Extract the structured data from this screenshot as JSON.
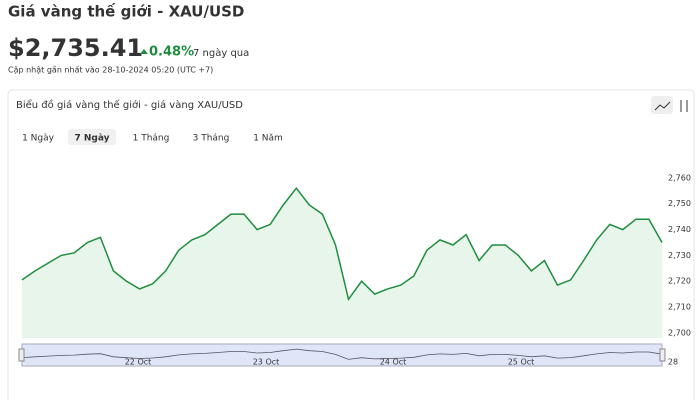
{
  "header": {
    "title": "Giá vàng thế giới - XAU/USD",
    "price": "$2,735.41",
    "change": "0.48%",
    "period": "7 ngày qua",
    "updated": "Cập nhật gần nhất vào 28-10-2024 05:20 (UTC +7)"
  },
  "panel": {
    "title": "Biểu đồ giá vàng thế giới - giá vàng XAU/USD",
    "tabs": [
      "1 Ngày",
      "7 Ngày",
      "1 Tháng",
      "3 Tháng",
      "1 Năm"
    ],
    "selected_tab": 1
  },
  "chart_data": {
    "type": "line",
    "color": "#1e8e3e",
    "values": [
      2720.5,
      2724,
      2727,
      2730,
      2731,
      2735,
      2737,
      2724,
      2720,
      2717,
      2719,
      2724,
      2732,
      2736,
      2738,
      2742,
      2746,
      2746,
      2740,
      2742,
      2749.5,
      2756,
      2749.5,
      2746,
      2734,
      2713,
      2720,
      2715,
      2717,
      2718.5,
      2722,
      2732,
      2736,
      2734,
      2738,
      2728,
      2734,
      2734,
      2730,
      2724,
      2728,
      2718.5,
      2720.5,
      2728,
      2736,
      2742,
      2740,
      2744,
      2744,
      2735
    ],
    "ylim": [
      2698,
      2765
    ],
    "yticks": [
      {
        "value": 2700,
        "label": "2,700"
      },
      {
        "value": 2710,
        "label": "2,710"
      },
      {
        "value": 2720,
        "label": "2,720"
      },
      {
        "value": 2730,
        "label": "2,730"
      },
      {
        "value": 2740,
        "label": "2,740"
      },
      {
        "value": 2750,
        "label": "2,750"
      },
      {
        "value": 2760,
        "label": "2,760"
      }
    ],
    "navigator_labels": [
      "22 Oct",
      "23 Oct",
      "24 Oct",
      "25 Oct",
      "28"
    ]
  }
}
